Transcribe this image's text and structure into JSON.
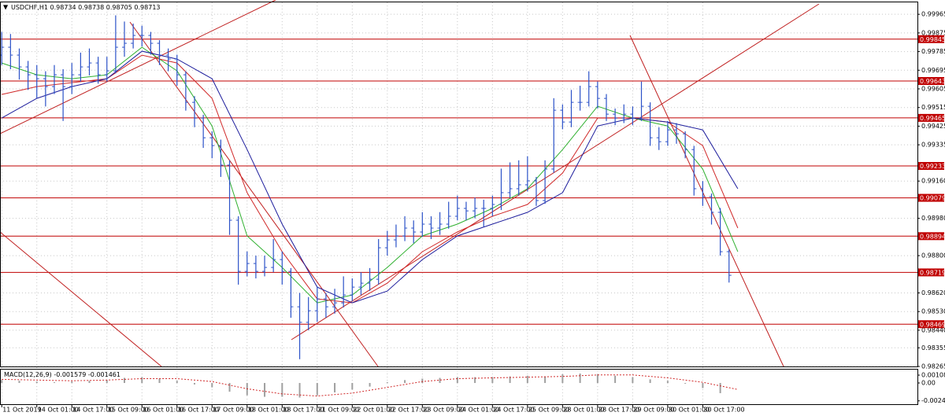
{
  "chart_data": [
    {
      "type": "ohlc",
      "title": "USDCHF,H1",
      "header_values": [
        0.98734,
        0.98738,
        0.98705,
        0.98713
      ],
      "color": "#2c52c8",
      "grid": true,
      "xlim": [
        -0.2,
        104.5
      ],
      "ylim": [
        0.98265,
        1.00015
      ],
      "yticks": [
        0.99965,
        0.99875,
        0.99785,
        0.99695,
        0.99605,
        0.99515,
        0.99425,
        0.99335,
        {
          "value": 0.9916,
          "label": "0.99160"
        },
        {
          "value": 0.9898,
          "label": "0.98980"
        },
        {
          "value": 0.988,
          "label": "0.98800"
        },
        {
          "value": 0.9862,
          "label": "0.98620"
        },
        {
          "value": 0.9853,
          "label": "0.98530"
        },
        {
          "value": 0.9844,
          "label": "0.98440"
        },
        0.98355,
        0.98265
      ],
      "xticks": [
        {
          "value": 0,
          "label": "11 Oct 2019"
        },
        {
          "value": 4,
          "label": "14 Oct 01:00"
        },
        {
          "value": 8,
          "label": "14 Oct 17:00"
        },
        {
          "value": 12,
          "label": "15 Oct 09:00"
        },
        {
          "value": 16,
          "label": "16 Oct 01:00"
        },
        {
          "value": 20,
          "label": "16 Oct 17:00"
        },
        {
          "value": 24,
          "label": "17 Oct 09:00"
        },
        {
          "value": 28,
          "label": "18 Oct 01:00"
        },
        {
          "value": 32,
          "label": "18 Oct 17:00"
        },
        {
          "value": 36,
          "label": "21 Oct 09:00"
        },
        {
          "value": 40,
          "label": "22 Oct 01:00"
        },
        {
          "value": 44,
          "label": "22 Oct 17:00"
        },
        {
          "value": 48,
          "label": "23 Oct 09:00"
        },
        {
          "value": 52,
          "label": "24 Oct 01:00"
        },
        {
          "value": 56,
          "label": "24 Oct 17:00"
        },
        {
          "value": 60,
          "label": "25 Oct 09:00"
        },
        {
          "value": 64,
          "label": "28 Oct 01:00"
        },
        {
          "value": 68,
          "label": "28 Oct 17:00"
        },
        {
          "value": 72,
          "label": "29 Oct 09:00"
        },
        {
          "value": 76,
          "label": "30 Oct 01:00"
        },
        {
          "value": 80,
          "label": "30 Oct 17:00"
        }
      ],
      "levels": {
        "color": "#c00000",
        "values": [
          0.99845,
          0.99643,
          0.99465,
          0.99233,
          0.99079,
          0.98894,
          0.98719,
          0.98469
        ]
      },
      "bars": [
        [
          0.99768,
          0.9988,
          0.9972,
          0.99806
        ],
        [
          0.99806,
          0.9987,
          0.997,
          0.99768
        ],
        [
          0.99768,
          0.998,
          0.9965,
          0.99711
        ],
        [
          0.99711,
          0.9974,
          0.996,
          0.99673
        ],
        [
          0.99673,
          0.9972,
          0.9956,
          0.99654
        ],
        [
          0.99654,
          0.9969,
          0.9952,
          0.99616
        ],
        [
          0.99616,
          0.9972,
          0.9958,
          0.99673
        ],
        [
          0.99673,
          0.997,
          0.9945,
          0.99616
        ],
        [
          0.99616,
          0.9973,
          0.9958,
          0.99673
        ],
        [
          0.99673,
          0.9978,
          0.9964,
          0.99711
        ],
        [
          0.99711,
          0.998,
          0.9967,
          0.9973
        ],
        [
          0.9973,
          0.9976,
          0.9963,
          0.99673
        ],
        [
          0.99673,
          0.9976,
          0.9964,
          0.99692
        ],
        [
          0.99692,
          0.9996,
          0.9968,
          0.99806
        ],
        [
          0.99806,
          0.9993,
          0.9976,
          0.99825
        ],
        [
          0.99825,
          0.9992,
          0.998,
          0.99863
        ],
        [
          0.99863,
          0.9991,
          0.9981,
          0.99863
        ],
        [
          0.99863,
          0.9988,
          0.9977,
          0.99825
        ],
        [
          0.99825,
          0.9984,
          0.9972,
          0.99768
        ],
        [
          0.99768,
          0.998,
          0.9969,
          0.99749
        ],
        [
          0.99749,
          0.9977,
          0.9962,
          0.99673
        ],
        [
          0.99673,
          0.9969,
          0.995,
          0.9954
        ],
        [
          0.9954,
          0.9957,
          0.9942,
          0.99464
        ],
        [
          0.99464,
          0.9948,
          0.9932,
          0.99369
        ],
        [
          0.99369,
          0.994,
          0.9927,
          0.99331
        ],
        [
          0.99331,
          0.9936,
          0.9918,
          0.99237
        ],
        [
          0.99237,
          0.9926,
          0.989,
          0.98971
        ],
        [
          0.98971,
          0.9899,
          0.9866,
          0.98724
        ],
        [
          0.98724,
          0.9882,
          0.987,
          0.98762
        ],
        [
          0.98762,
          0.988,
          0.9869,
          0.98724
        ],
        [
          0.98724,
          0.988,
          0.987,
          0.98743
        ],
        [
          0.98743,
          0.9888,
          0.9872,
          0.98781
        ],
        [
          0.98781,
          0.9882,
          0.9866,
          0.98724
        ],
        [
          0.98724,
          0.9874,
          0.985,
          0.98553
        ],
        [
          0.98553,
          0.9862,
          0.983,
          0.98478
        ],
        [
          0.98478,
          0.986,
          0.9844,
          0.98534
        ],
        [
          0.98534,
          0.9865,
          0.9848,
          0.98591
        ],
        [
          0.98591,
          0.9862,
          0.985,
          0.98553
        ],
        [
          0.98553,
          0.9864,
          0.9852,
          0.98572
        ],
        [
          0.98572,
          0.987,
          0.9855,
          0.9861
        ],
        [
          0.9861,
          0.9869,
          0.9858,
          0.98648
        ],
        [
          0.98648,
          0.9872,
          0.9861,
          0.98667
        ],
        [
          0.98667,
          0.9874,
          0.9863,
          0.98686
        ],
        [
          0.98686,
          0.9888,
          0.9866,
          0.98838
        ],
        [
          0.98838,
          0.9892,
          0.988,
          0.98876
        ],
        [
          0.98876,
          0.9895,
          0.9884,
          0.98895
        ],
        [
          0.98895,
          0.9899,
          0.9887,
          0.98933
        ],
        [
          0.98933,
          0.9897,
          0.9886,
          0.98914
        ],
        [
          0.98914,
          0.9901,
          0.9889,
          0.98952
        ],
        [
          0.98952,
          0.9899,
          0.9888,
          0.98933
        ],
        [
          0.98933,
          0.9901,
          0.989,
          0.98952
        ],
        [
          0.98952,
          0.9906,
          0.9893,
          0.9899
        ],
        [
          0.9899,
          0.9909,
          0.9897,
          0.99028
        ],
        [
          0.99028,
          0.9906,
          0.9897,
          0.99016
        ],
        [
          0.99016,
          0.9908,
          0.9898,
          0.99028
        ],
        [
          0.99028,
          0.9907,
          0.9894,
          0.99028
        ],
        [
          0.99028,
          0.9909,
          0.9899,
          0.99047
        ],
        [
          0.99047,
          0.9922,
          0.9902,
          0.99104
        ],
        [
          0.99104,
          0.9925,
          0.9908,
          0.99123
        ],
        [
          0.99123,
          0.9926,
          0.9909,
          0.99142
        ],
        [
          0.99142,
          0.9928,
          0.9911,
          0.99161
        ],
        [
          0.99161,
          0.9918,
          0.9904,
          0.99066
        ],
        [
          0.99066,
          0.9926,
          0.9905,
          0.99218
        ],
        [
          0.99218,
          0.9956,
          0.992,
          0.99502
        ],
        [
          0.99502,
          0.9953,
          0.9941,
          0.99445
        ],
        [
          0.99445,
          0.996,
          0.9942,
          0.9954
        ],
        [
          0.9954,
          0.9962,
          0.995,
          0.9954
        ],
        [
          0.9954,
          0.9969,
          0.9952,
          0.99616
        ],
        [
          0.99616,
          0.9964,
          0.9951,
          0.99559
        ],
        [
          0.99559,
          0.9958,
          0.9945,
          0.99483
        ],
        [
          0.99483,
          0.9951,
          0.9943,
          0.99464
        ],
        [
          0.99464,
          0.9953,
          0.9944,
          0.99483
        ],
        [
          0.99483,
          0.9952,
          0.9943,
          0.99464
        ],
        [
          0.99464,
          0.9964,
          0.9945,
          0.99521
        ],
        [
          0.99521,
          0.9954,
          0.9933,
          0.99369
        ],
        [
          0.99369,
          0.9942,
          0.9931,
          0.9935
        ],
        [
          0.9935,
          0.9945,
          0.9933,
          0.99407
        ],
        [
          0.99407,
          0.9944,
          0.9934,
          0.99388
        ],
        [
          0.99388,
          0.994,
          0.9927,
          0.99312
        ],
        [
          0.99312,
          0.9933,
          0.9909,
          0.99123
        ],
        [
          0.99123,
          0.9916,
          0.9904,
          0.99085
        ],
        [
          0.99085,
          0.991,
          0.9895,
          0.99009
        ],
        [
          0.99009,
          0.9903,
          0.988,
          0.98819
        ],
        [
          0.98819,
          0.9883,
          0.9867,
          0.98705
        ]
      ],
      "ma_x": [
        0,
        4,
        8,
        12,
        16,
        20,
        24,
        28,
        32,
        36,
        40,
        44,
        48,
        52,
        56,
        60,
        64,
        68,
        72,
        76,
        80,
        84
      ],
      "moving_averages": [
        {
          "color": "#2fb02f",
          "values": [
            0.9973,
            0.99673,
            0.99654,
            0.99673,
            0.99806,
            0.99692,
            0.99426,
            0.98895,
            0.98743,
            0.98572,
            0.9861,
            0.98743,
            0.98895,
            0.98952,
            0.99028,
            0.99123,
            0.99312,
            0.99521,
            0.99464,
            0.99426,
            0.99218,
            0.98819
          ]
        },
        {
          "color": "#d02828",
          "values": [
            0.99578,
            0.99616,
            0.99635,
            0.99654,
            0.99768,
            0.9973,
            0.99559,
            0.99104,
            0.98819,
            0.98591,
            0.98572,
            0.98667,
            0.98819,
            0.98914,
            0.9899,
            0.99047,
            0.99199,
            0.99464,
            0.99464,
            0.99445,
            0.99331,
            0.98933
          ]
        },
        {
          "color": "#1c1c9c",
          "values": [
            0.99464,
            0.99559,
            0.99616,
            0.99654,
            0.99787,
            0.99749,
            0.99654,
            0.99312,
            0.98952,
            0.98648,
            0.98572,
            0.98629,
            0.98781,
            0.98895,
            0.98952,
            0.99009,
            0.99104,
            0.99426,
            0.99464,
            0.99445,
            0.99407,
            0.99123
          ]
        }
      ]
    },
    {
      "type": "macd",
      "title": "MACD(12,26,9)",
      "header_values": [
        -0.001579,
        -0.001461
      ],
      "ylim": [
        -0.00292,
        0.00184
      ],
      "yticks": [
        0.00108,
        {
          "value": 0,
          "label": "0.00"
        },
        -0.00246
      ],
      "histogram": {
        "color": "#a0a0a0",
        "x": [
          0,
          2,
          4,
          6,
          8,
          10,
          12,
          14,
          16,
          18,
          20,
          22,
          24,
          26,
          28,
          30,
          32,
          34,
          36,
          38,
          40,
          42,
          44,
          46,
          48,
          50,
          52,
          54,
          56,
          58,
          60,
          62,
          64,
          66,
          68,
          70,
          72,
          74,
          76,
          78,
          80,
          82
        ],
        "values": [
          0.0004,
          0.0003,
          0.0002,
          0.0001,
          0.0002,
          0.0003,
          0.0004,
          0.0007,
          0.0008,
          0.0006,
          0.0003,
          -0.0002,
          -0.0006,
          -0.0012,
          -0.0017,
          -0.0019,
          -0.0019,
          -0.002,
          -0.0017,
          -0.0013,
          -0.0009,
          -0.0005,
          0.0001,
          0.0004,
          0.0006,
          0.0007,
          0.0008,
          0.0008,
          0.0008,
          0.0009,
          0.001,
          0.0009,
          0.0012,
          0.0013,
          0.0012,
          0.001,
          0.0008,
          0.0005,
          0.0003,
          -0.0001,
          -0.0007,
          -0.0014
        ]
      },
      "signal": {
        "color": "#d02828",
        "x": [
          0,
          4,
          8,
          12,
          16,
          20,
          24,
          28,
          32,
          36,
          40,
          44,
          48,
          52,
          56,
          60,
          64,
          68,
          72,
          76,
          80,
          84
        ],
        "values": [
          0.0005,
          0.0004,
          0.0003,
          0.0004,
          0.0006,
          0.0006,
          0.0002,
          -0.0008,
          -0.0015,
          -0.0018,
          -0.0014,
          -0.0006,
          0.0002,
          0.0006,
          0.0007,
          0.0008,
          0.0009,
          0.0011,
          0.0011,
          0.0007,
          0.0001,
          -0.0009
        ]
      }
    }
  ]
}
